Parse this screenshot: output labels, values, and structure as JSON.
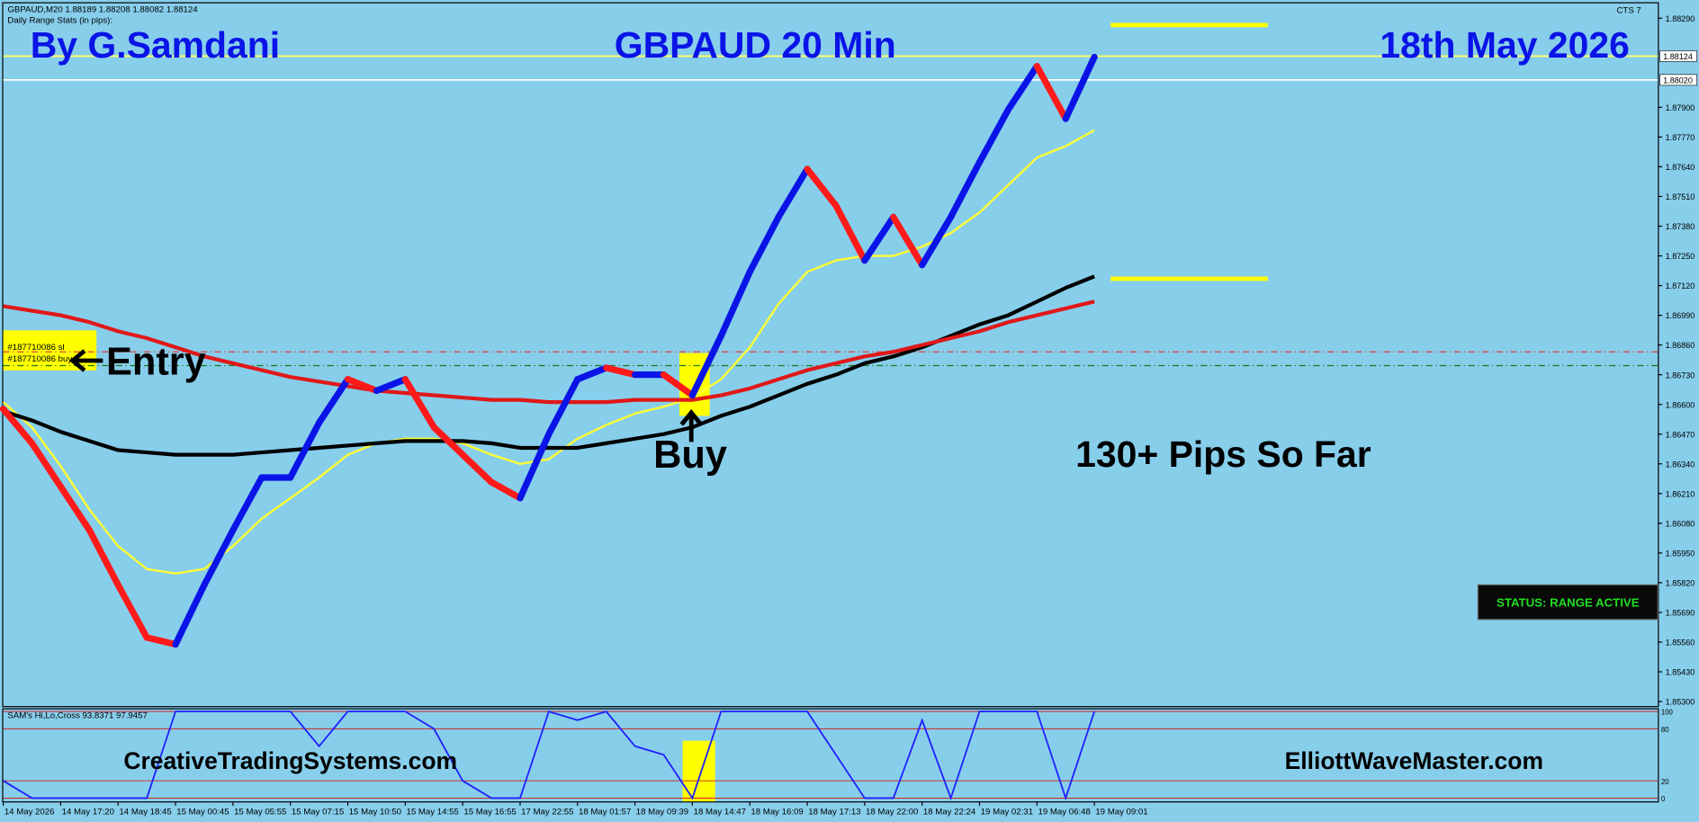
{
  "header": {
    "symbol_line": "GBPAUD,M20  1.88189 1.88208 1.88082 1.88124",
    "stats_title": "Daily Range Stats (in pips):",
    "badge": "CTS 7"
  },
  "chart_data": {
    "type": "line",
    "title": "GBPAUD 20 Min",
    "author": "By G.Samdani",
    "date": "18th May 2026",
    "annotations": {
      "entry": "Entry",
      "buy": "Buy",
      "pips": "130+ Pips So Far",
      "status": "STATUS: RANGE ACTIVE",
      "site_left": "CreativeTradingSystems.com",
      "site_right": "ElliottWaveMaster.com",
      "order_sl": "#187710086 sl",
      "order_buy": "#187710086 buy"
    },
    "categories": [
      "14 May 2026",
      null,
      "14 May 17:20",
      null,
      "14 May 18:45",
      null,
      "15 May 00:45",
      null,
      "15 May 05:55",
      null,
      "15 May 07:15",
      null,
      "15 May 10:50",
      null,
      "15 May 14:55",
      null,
      "15 May 16:55",
      null,
      "17 May 22:55",
      null,
      "18 May 01:57",
      null,
      "18 May 09:39",
      null,
      "18 May 14:47",
      null,
      "18 May 16:09",
      null,
      "18 May 17:13",
      null,
      "18 May 22:00",
      null,
      "18 May 22:24",
      null,
      "19 May 02:31",
      null,
      "19 May 06:48",
      null,
      "19 May 09:01"
    ],
    "values": [
      1.8658,
      1.8643,
      1.8624,
      1.8605,
      1.8581,
      1.8558,
      1.8555,
      1.8581,
      1.8605,
      1.8628,
      1.8628,
      1.8652,
      1.8671,
      1.8666,
      1.8671,
      1.865,
      1.8638,
      1.8626,
      1.8619,
      1.8647,
      1.8671,
      1.8676,
      1.8673,
      1.8673,
      1.8664,
      1.869,
      1.8718,
      1.8742,
      1.8763,
      1.8747,
      1.8723,
      1.8742,
      1.8721,
      1.8742,
      1.8766,
      1.8789,
      1.8808,
      1.8785,
      1.8812
    ],
    "up_color": "#0a14e6",
    "down_color": "#ff1a1a",
    "overlays": [
      {
        "color": "#ffff33",
        "width": 2,
        "values": [
          1.8661,
          1.865,
          1.8633,
          1.8614,
          1.8598,
          1.8588,
          1.8586,
          1.8588,
          1.8598,
          1.861,
          1.8619,
          1.8628,
          1.8638,
          1.8643,
          1.8645,
          1.8645,
          1.8643,
          1.8638,
          1.8634,
          1.8636,
          1.8645,
          1.8651,
          1.8656,
          1.8659,
          1.8663,
          1.8671,
          1.8685,
          1.8704,
          1.8718,
          1.8723,
          1.8725,
          1.8725,
          1.8729,
          1.8735,
          1.8744,
          1.8756,
          1.8768,
          1.8773,
          1.878
        ]
      },
      {
        "color": "#000000",
        "width": 3.5,
        "values": [
          1.8657,
          1.8653,
          1.8648,
          1.8644,
          1.864,
          1.8639,
          1.8638,
          1.8638,
          1.8638,
          1.8639,
          1.864,
          1.8641,
          1.8642,
          1.8643,
          1.8644,
          1.8644,
          1.8644,
          1.8643,
          1.8641,
          1.8641,
          1.8641,
          1.8643,
          1.8645,
          1.8647,
          1.865,
          1.8655,
          1.8659,
          1.8664,
          1.8669,
          1.8673,
          1.8678,
          1.8681,
          1.8685,
          1.869,
          1.8695,
          1.8699,
          1.8705,
          1.8711,
          1.8716
        ]
      },
      {
        "color": "#e01818",
        "width": 3.5,
        "values": [
          1.8703,
          1.8701,
          1.8699,
          1.8696,
          1.8692,
          1.8689,
          1.8685,
          1.8681,
          1.8678,
          1.8675,
          1.8672,
          1.867,
          1.8668,
          1.8666,
          1.8665,
          1.8664,
          1.8663,
          1.8662,
          1.8662,
          1.8661,
          1.8661,
          1.8661,
          1.8662,
          1.8662,
          1.8662,
          1.8664,
          1.8667,
          1.8671,
          1.8675,
          1.8678,
          1.8681,
          1.8683,
          1.8686,
          1.8689,
          1.8692,
          1.8696,
          1.8699,
          1.8702,
          1.8705
        ]
      }
    ],
    "levels": [
      {
        "value": 1.88124,
        "label": "1.88124",
        "color": "#ffff66"
      },
      {
        "value": 1.8802,
        "label": "1.88020",
        "color": "#ffffff"
      },
      {
        "value": 1.8683,
        "color": "#e04040",
        "dash": true
      },
      {
        "value": 1.8677,
        "color": "#1a7a1a",
        "dash": true
      }
    ],
    "targets": {
      "color": "#ffff00",
      "values": [
        1.8826,
        1.8715
      ]
    },
    "ylim": [
      1.8528,
      1.8836
    ],
    "yticks": [
      {
        "value": 1.8829,
        "label": "1.88290"
      },
      {
        "value": 1.879,
        "label": "1.87900"
      },
      {
        "value": 1.8777,
        "label": "1.87770"
      },
      {
        "value": 1.8764,
        "label": "1.87640"
      },
      {
        "value": 1.8751,
        "label": "1.87510"
      },
      {
        "value": 1.8738,
        "label": "1.87380"
      },
      {
        "value": 1.8725,
        "label": "1.87250"
      },
      {
        "value": 1.8712,
        "label": "1.87120"
      },
      {
        "value": 1.8699,
        "label": "1.86990"
      },
      {
        "value": 1.8686,
        "label": "1.86860"
      },
      {
        "value": 1.8673,
        "label": "1.86730"
      },
      {
        "value": 1.866,
        "label": "1.86600"
      },
      {
        "value": 1.8647,
        "label": "1.86470"
      },
      {
        "value": 1.8634,
        "label": "1.86340"
      },
      {
        "value": 1.8621,
        "label": "1.86210"
      },
      {
        "value": 1.8608,
        "label": "1.86080"
      },
      {
        "value": 1.8595,
        "label": "1.85950"
      },
      {
        "value": 1.8582,
        "label": "1.85820"
      },
      {
        "value": 1.8569,
        "label": "1.85690"
      },
      {
        "value": 1.8556,
        "label": "1.85560"
      },
      {
        "value": 1.8543,
        "label": "1.85430"
      },
      {
        "value": 1.853,
        "label": "1.85300"
      }
    ],
    "oscillator": {
      "title": "SAM's Hi,Lo,Cross 93.8371 97.9457",
      "color": "#2020ff",
      "values": [
        20,
        0,
        0,
        0,
        0,
        0,
        100,
        100,
        100,
        100,
        100,
        60,
        100,
        100,
        100,
        80,
        20,
        0,
        0,
        100,
        90,
        100,
        60,
        50,
        0,
        100,
        100,
        100,
        100,
        50,
        0,
        0,
        90,
        0,
        100,
        100,
        100,
        0,
        100
      ],
      "ylim": [
        0,
        100
      ],
      "yticks": [
        0,
        20,
        80,
        100
      ]
    }
  }
}
